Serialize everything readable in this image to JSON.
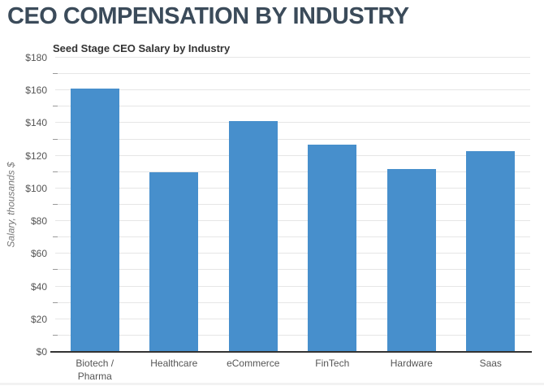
{
  "page": {
    "heading": "CEO COMPENSATION BY INDUSTRY",
    "heading_color": "#3b4b5a"
  },
  "chart_data": {
    "type": "bar",
    "title": "Seed Stage CEO Salary by Industry",
    "categories": [
      "Biotech / Pharma",
      "Healthcare",
      "eCommerce",
      "FinTech",
      "Hardware",
      "Saas"
    ],
    "values": [
      161,
      110,
      141,
      127,
      112,
      123
    ],
    "xlabel": "",
    "ylabel": "Salary, thousands $",
    "ylim": [
      0,
      180
    ],
    "ytick_step": 20,
    "minor_tick_step": 10,
    "ytick_labels": [
      "$0",
      "$20",
      "$40",
      "$60",
      "$80",
      "$100",
      "$120",
      "$140",
      "$160",
      "$180"
    ],
    "grid": true,
    "legend": "none",
    "bar_color": "#478fcc",
    "grid_color": "#e6e6e6",
    "axis_line_color": "#333333",
    "tick_label_color": "#555555"
  }
}
